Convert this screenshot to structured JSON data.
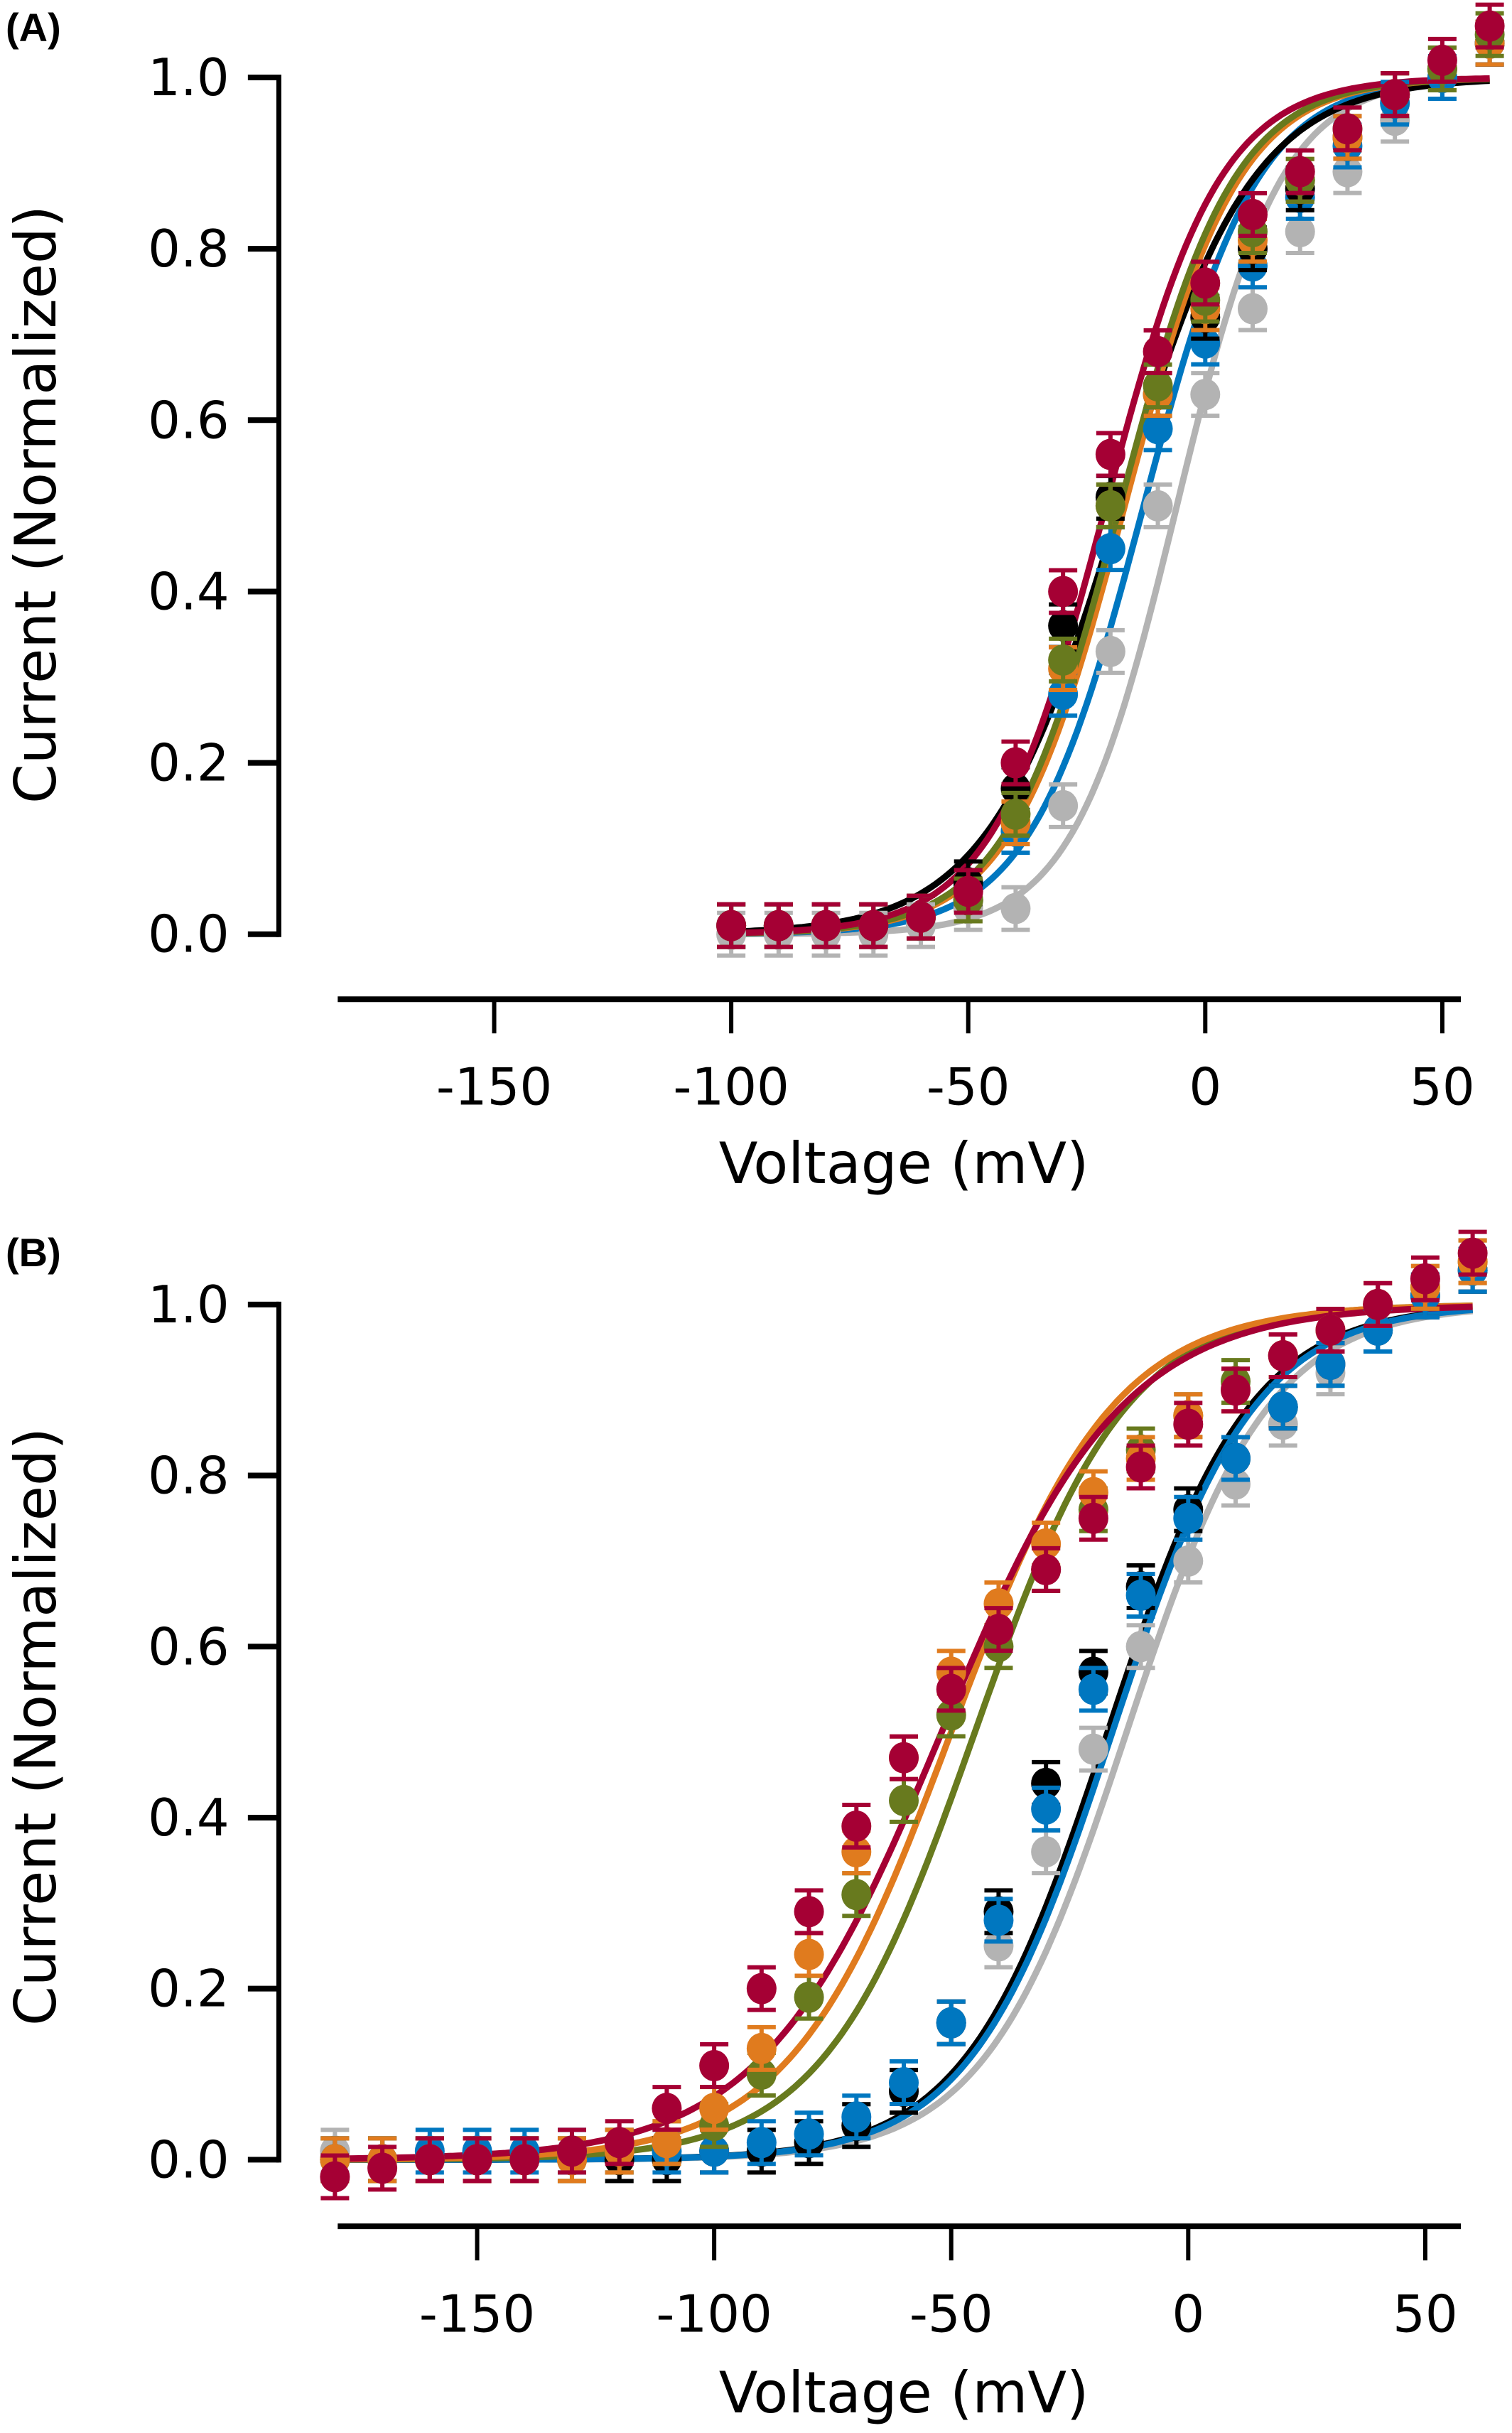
{
  "chart_data": [
    {
      "panel": "(A)",
      "type": "scatter",
      "title": "",
      "xlabel": "Voltage (mV)",
      "ylabel": "Current (Normalized)",
      "xlim": [
        -185,
        60
      ],
      "ylim": [
        0,
        1.0
      ],
      "xticks": [
        -150,
        -100,
        -50,
        0,
        50
      ],
      "xtick_labels": [
        "-150",
        "-100",
        "-50",
        "0",
        "50"
      ],
      "yticks": [
        0,
        0.2,
        0.4,
        0.6,
        0.8,
        1.0
      ],
      "ytick_labels": [
        "0.0",
        "0.2",
        "0.4",
        "0.6",
        "0.8",
        "1.0"
      ],
      "grid": false,
      "legend": "none",
      "x": [
        -100,
        -90,
        -80,
        -70,
        -60,
        -50,
        -40,
        -30,
        -20,
        -10,
        0,
        10,
        20,
        30,
        40,
        50,
        60
      ],
      "series": [
        {
          "name": "gray",
          "color": "#b3b3b3",
          "fit_v_half": -6,
          "fit_k": 11,
          "values": [
            0.0,
            0.0,
            0.0,
            0.0,
            0.01,
            0.03,
            0.03,
            0.15,
            0.33,
            0.5,
            0.63,
            0.73,
            0.82,
            0.89,
            0.95,
            1.0,
            1.04
          ]
        },
        {
          "name": "blue",
          "color": "#0077c0",
          "fit_v_half": -13,
          "fit_k": 12,
          "values": [
            0.01,
            0.01,
            0.01,
            0.01,
            0.02,
            0.04,
            0.12,
            0.28,
            0.45,
            0.59,
            0.69,
            0.78,
            0.86,
            0.92,
            0.97,
            1.0,
            1.04
          ]
        },
        {
          "name": "black",
          "color": "#000000",
          "fit_v_half": -18,
          "fit_k": 14,
          "values": [
            0.01,
            0.01,
            0.01,
            0.01,
            0.02,
            0.06,
            0.17,
            0.36,
            0.51,
            0.63,
            0.72,
            0.8,
            0.87,
            0.93,
            0.98,
            1.01,
            1.04
          ]
        },
        {
          "name": "orange",
          "color": "#e07b1e",
          "fit_v_half": -17,
          "fit_k": 12,
          "values": [
            0.01,
            0.01,
            0.01,
            0.01,
            0.02,
            0.04,
            0.13,
            0.31,
            0.5,
            0.63,
            0.73,
            0.81,
            0.88,
            0.93,
            0.98,
            1.01,
            1.04
          ]
        },
        {
          "name": "olive",
          "color": "#687a1e",
          "fit_v_half": -18,
          "fit_k": 12,
          "values": [
            0.01,
            0.01,
            0.01,
            0.01,
            0.02,
            0.04,
            0.14,
            0.32,
            0.5,
            0.64,
            0.74,
            0.82,
            0.88,
            0.94,
            0.98,
            1.01,
            1.05
          ]
        },
        {
          "name": "crimson",
          "color": "#a50034",
          "fit_v_half": -21,
          "fit_k": 12,
          "values": [
            0.01,
            0.01,
            0.01,
            0.01,
            0.02,
            0.05,
            0.2,
            0.4,
            0.56,
            0.68,
            0.76,
            0.84,
            0.89,
            0.94,
            0.98,
            1.02,
            1.06
          ]
        }
      ]
    },
    {
      "panel": "(B)",
      "type": "scatter",
      "title": "",
      "xlabel": "Voltage (mV)",
      "ylabel": "Current (Normalized)",
      "xlim": [
        -182,
        58
      ],
      "ylim": [
        0,
        1.0
      ],
      "xticks": [
        -150,
        -100,
        -50,
        0,
        50
      ],
      "xtick_labels": [
        "-150",
        "-100",
        "-50",
        "0",
        "50"
      ],
      "yticks": [
        0,
        0.2,
        0.4,
        0.6,
        0.8,
        1.0
      ],
      "ytick_labels": [
        "0.0",
        "0.2",
        "0.4",
        "0.6",
        "0.8",
        "1.0"
      ],
      "grid": false,
      "legend": "none",
      "x": [
        -180,
        -170,
        -160,
        -150,
        -140,
        -130,
        -120,
        -110,
        -100,
        -90,
        -80,
        -70,
        -60,
        -50,
        -40,
        -30,
        -20,
        -10,
        0,
        10,
        20,
        30,
        40,
        50,
        60
      ],
      "series": [
        {
          "name": "gray",
          "color": "#b3b3b3",
          "fit_v_half": -13,
          "fit_k": 15,
          "values": [
            0.01,
            0.0,
            0.0,
            0.0,
            0.0,
            0.0,
            0.0,
            0.0,
            0.01,
            0.01,
            0.02,
            0.04,
            0.08,
            0.16,
            0.25,
            0.36,
            0.48,
            0.6,
            0.7,
            0.79,
            0.86,
            0.92,
            0.97,
            1.01,
            1.04
          ]
        },
        {
          "name": "black",
          "color": "#000000",
          "fit_v_half": -17,
          "fit_k": 15,
          "values": [
            0.0,
            0.0,
            0.0,
            0.0,
            0.0,
            0.0,
            0.0,
            0.0,
            0.01,
            0.01,
            0.02,
            0.04,
            0.08,
            0.16,
            0.29,
            0.44,
            0.57,
            0.67,
            0.76,
            0.82,
            0.88,
            0.93,
            0.97,
            1.01,
            1.04
          ]
        },
        {
          "name": "blue",
          "color": "#0077c0",
          "fit_v_half": -16,
          "fit_k": 15,
          "values": [
            0.0,
            0.0,
            0.01,
            0.01,
            0.01,
            0.01,
            0.01,
            0.01,
            0.01,
            0.02,
            0.03,
            0.05,
            0.09,
            0.16,
            0.28,
            0.41,
            0.55,
            0.66,
            0.75,
            0.82,
            0.88,
            0.93,
            0.97,
            1.01,
            1.04
          ]
        },
        {
          "name": "olive",
          "color": "#687a1e",
          "fit_v_half": -45,
          "fit_k": 16,
          "values": [
            0.0,
            0.0,
            0.0,
            0.0,
            0.0,
            0.0,
            0.01,
            0.02,
            0.04,
            0.1,
            0.19,
            0.31,
            0.42,
            0.52,
            0.6,
            0.69,
            0.76,
            0.83,
            0.87,
            0.91,
            0.94,
            0.97,
            1.0,
            1.02,
            1.05
          ]
        },
        {
          "name": "orange",
          "color": "#e07b1e",
          "fit_v_half": -50,
          "fit_k": 17,
          "values": [
            0.0,
            0.0,
            0.0,
            0.0,
            0.0,
            0.0,
            0.01,
            0.02,
            0.06,
            0.13,
            0.24,
            0.36,
            0.47,
            0.57,
            0.65,
            0.72,
            0.78,
            0.82,
            0.87,
            0.9,
            0.94,
            0.97,
            1.0,
            1.02,
            1.05
          ]
        },
        {
          "name": "crimson",
          "color": "#a50034",
          "fit_v_half": -52,
          "fit_k": 19,
          "values": [
            -0.02,
            -0.01,
            0.0,
            0.0,
            0.0,
            0.01,
            0.02,
            0.06,
            0.11,
            0.2,
            0.29,
            0.39,
            0.47,
            0.55,
            0.62,
            0.69,
            0.75,
            0.81,
            0.86,
            0.9,
            0.94,
            0.97,
            1.0,
            1.03,
            1.06
          ]
        }
      ]
    }
  ]
}
